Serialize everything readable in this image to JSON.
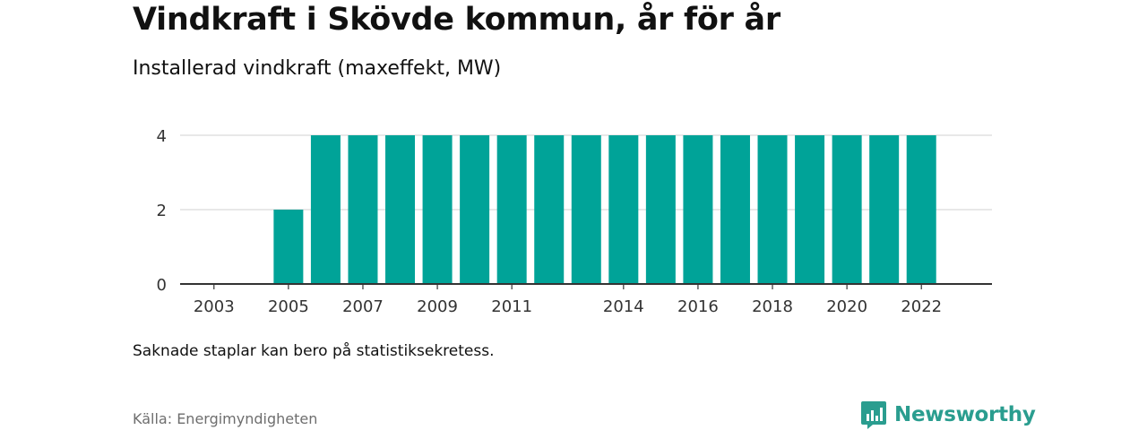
{
  "header": {
    "title": "Vindkraft i Skövde kommun, år för år",
    "subtitle": "Installerad vindkraft (maxeffekt, MW)"
  },
  "footer": {
    "note": "Saknade staplar kan bero på statistiksekretess.",
    "source": "Källa: Energimyndigheten",
    "brand": "Newsworthy"
  },
  "colors": {
    "bar": "#00a398",
    "brand": "#2a9d8f",
    "grid": "#d9d9d9",
    "axis": "#333333"
  },
  "chart_data": {
    "type": "bar",
    "title": "Vindkraft i Skövde kommun, år för år",
    "ylabel": "Installerad vindkraft (maxeffekt, MW)",
    "xlabel": "",
    "categories": [
      "2003",
      "2004",
      "2005",
      "2006",
      "2007",
      "2008",
      "2009",
      "2010",
      "2011",
      "2012",
      "2013",
      "2014",
      "2015",
      "2016",
      "2017",
      "2018",
      "2019",
      "2020",
      "2021",
      "2022"
    ],
    "values": [
      0,
      0,
      2,
      4,
      4,
      4,
      4,
      4,
      4,
      4,
      4,
      4,
      4,
      4,
      4,
      4,
      4,
      4,
      4,
      4
    ],
    "x_tick_labels": [
      "2003",
      "2005",
      "2007",
      "2009",
      "2011",
      "2014",
      "2016",
      "2018",
      "2020",
      "2022"
    ],
    "y_ticks": [
      0,
      2,
      4
    ],
    "ylim": [
      0,
      4
    ],
    "grid": true,
    "legend": "none"
  }
}
